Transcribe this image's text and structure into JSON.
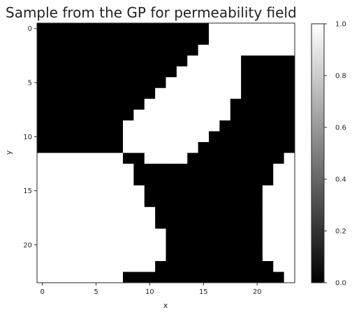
{
  "chart_data": {
    "type": "heatmap",
    "title": "Sample from the GP for permeability field",
    "xlabel": "x",
    "ylabel": "y",
    "x_ticks": [
      "0",
      "5",
      "10",
      "15",
      "20"
    ],
    "y_ticks": [
      "0",
      "5",
      "10",
      "15",
      "20"
    ],
    "colorbar_ticks": [
      "0.0",
      "0.2",
      "0.4",
      "0.6",
      "0.8",
      "1.0"
    ],
    "colormap": "gray",
    "value_range": [
      0,
      1
    ],
    "grid_size": [
      24,
      24
    ],
    "grid": [
      "000000000000000011111111",
      "000000000000000011111111",
      "000000000000000111111111",
      "000000000000001111100000",
      "000000000000011111100000",
      "000000000000111111100000",
      "000000000001111111100000",
      "000000000011111111000000",
      "000000000111111111000000",
      "000000001111111110000000",
      "000000001111111100000000",
      "000000001111111000000000",
      "111111110011110000000001",
      "111111111000000000000011",
      "111111111000000000000011",
      "111111111100000000000111",
      "111111111100000000000111",
      "111111111110000000000111",
      "111111111110000000000111",
      "111111111111000000000111",
      "111111111111000000000111",
      "111111111111000000000111",
      "111111111110000000000011",
      "111111110000000000000001"
    ]
  },
  "colors": {
    "high": "#ffffff",
    "low": "#000000",
    "frame": "#262626"
  }
}
